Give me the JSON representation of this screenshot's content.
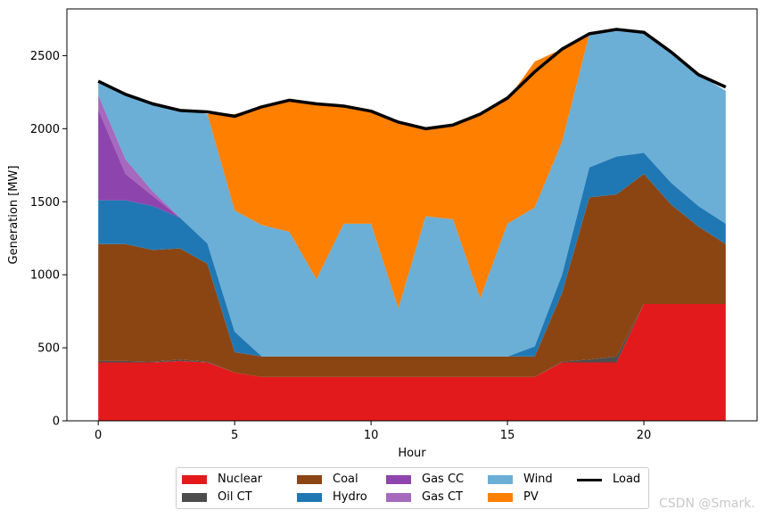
{
  "chart_data": {
    "type": "area",
    "stacked": true,
    "xlabel": "Hour",
    "ylabel": "Generation [MW]",
    "xlim": [
      -1.15,
      24.15
    ],
    "ylim": [
      0,
      2820
    ],
    "xticks": [
      0,
      5,
      10,
      15,
      20
    ],
    "yticks": [
      0,
      500,
      1000,
      1500,
      2000,
      2500
    ],
    "x": [
      0,
      1,
      2,
      3,
      4,
      5,
      6,
      7,
      8,
      9,
      10,
      11,
      12,
      13,
      14,
      15,
      16,
      17,
      18,
      19,
      20,
      21,
      22,
      23
    ],
    "series": [
      {
        "name": "Nuclear",
        "color": "#e31a1c",
        "values": [
          400,
          400,
          400,
          410,
          400,
          330,
          300,
          300,
          300,
          300,
          300,
          300,
          300,
          300,
          300,
          300,
          300,
          400,
          400,
          400,
          800,
          800,
          800,
          800
        ]
      },
      {
        "name": "Oil CT",
        "color": "#4d4d4d",
        "values": [
          10,
          10,
          5,
          10,
          5,
          0,
          0,
          0,
          0,
          0,
          0,
          0,
          0,
          0,
          0,
          0,
          0,
          5,
          20,
          40,
          0,
          0,
          0,
          0
        ]
      },
      {
        "name": "Coal",
        "color": "#8b4513",
        "values": [
          800,
          800,
          765,
          760,
          670,
          140,
          140,
          140,
          140,
          140,
          140,
          140,
          140,
          140,
          140,
          140,
          140,
          470,
          1110,
          1110,
          890,
          680,
          530,
          410
        ]
      },
      {
        "name": "Hydro",
        "color": "#1f78b4",
        "values": [
          300,
          300,
          300,
          210,
          140,
          140,
          0,
          0,
          0,
          0,
          0,
          0,
          0,
          0,
          0,
          0,
          70,
          125,
          205,
          260,
          145,
          150,
          140,
          140
        ]
      },
      {
        "name": "Gas CC",
        "color": "#8e44ad",
        "values": [
          620,
          180,
          70,
          0,
          0,
          0,
          0,
          0,
          0,
          0,
          0,
          0,
          0,
          0,
          0,
          0,
          0,
          0,
          0,
          0,
          0,
          0,
          0,
          0
        ]
      },
      {
        "name": "Gas CT",
        "color": "#a569bd",
        "values": [
          100,
          100,
          30,
          0,
          0,
          0,
          0,
          0,
          0,
          0,
          0,
          0,
          0,
          0,
          0,
          0,
          0,
          0,
          0,
          0,
          0,
          0,
          0,
          0
        ]
      },
      {
        "name": "Wind",
        "color": "#6baed6",
        "values": [
          95,
          440,
          605,
          745,
          885,
          830,
          900,
          855,
          530,
          910,
          910,
          330,
          960,
          940,
          400,
          910,
          950,
          910,
          910,
          880,
          825,
          895,
          900,
          910
        ]
      },
      {
        "name": "PV",
        "color": "#ff7f00",
        "values": [
          0,
          0,
          0,
          0,
          0,
          660,
          810,
          895,
          1200,
          800,
          765,
          1270,
          595,
          650,
          1260,
          850,
          1000,
          635,
          15,
          0,
          0,
          0,
          0,
          0
        ]
      }
    ],
    "load": {
      "name": "Load",
      "color": "#000000",
      "values": [
        2325,
        2235,
        2170,
        2125,
        2115,
        2085,
        2150,
        2195,
        2170,
        2155,
        2120,
        2045,
        2000,
        2025,
        2100,
        2210,
        2390,
        2545,
        2650,
        2680,
        2660,
        2525,
        2370,
        2285
      ]
    },
    "legend": {
      "placement": "below",
      "items": [
        {
          "label": "Nuclear",
          "color": "#e31a1c",
          "kind": "patch"
        },
        {
          "label": "Oil CT",
          "color": "#4d4d4d",
          "kind": "patch"
        },
        {
          "label": "Coal",
          "color": "#8b4513",
          "kind": "patch"
        },
        {
          "label": "Hydro",
          "color": "#1f78b4",
          "kind": "patch"
        },
        {
          "label": "Gas CC",
          "color": "#8e44ad",
          "kind": "patch"
        },
        {
          "label": "Gas CT",
          "color": "#a569bd",
          "kind": "patch"
        },
        {
          "label": "Wind",
          "color": "#6baed6",
          "kind": "patch"
        },
        {
          "label": "PV",
          "color": "#ff7f00",
          "kind": "patch"
        },
        {
          "label": "Load",
          "color": "#000000",
          "kind": "line"
        }
      ]
    },
    "grid": false
  },
  "watermark": "CSDN @Smark."
}
